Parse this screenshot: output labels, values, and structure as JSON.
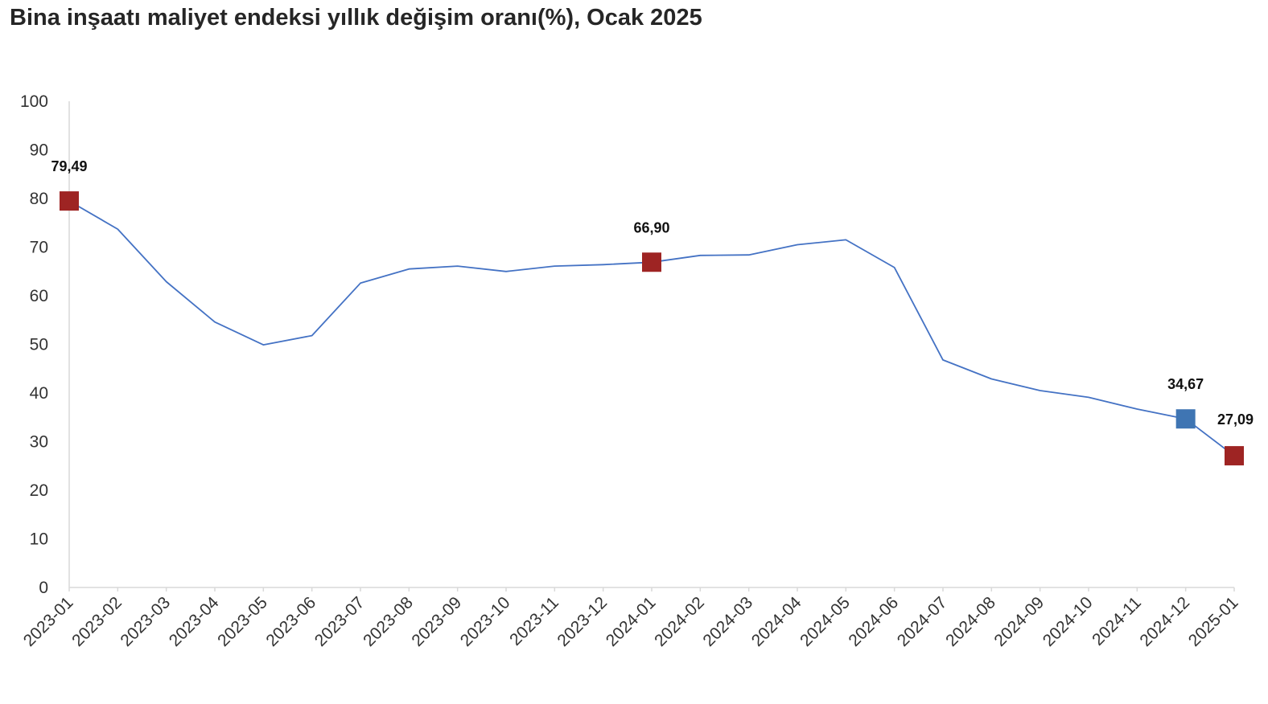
{
  "chart_data": {
    "type": "line",
    "title": "Bina inşaatı maliyet endeksi yıllık değişim oranı(%), Ocak 2025",
    "xlabel": "",
    "ylabel": "",
    "ylim": [
      0,
      100
    ],
    "yticks": [
      "0",
      "10",
      "20",
      "30",
      "40",
      "50",
      "60",
      "70",
      "80",
      "90",
      "100"
    ],
    "grid": false,
    "legend": "none",
    "categories": [
      "2023-01",
      "2023-02",
      "2023-03",
      "2023-04",
      "2023-05",
      "2023-06",
      "2023-07",
      "2023-08",
      "2023-09",
      "2023-10",
      "2023-11",
      "2023-12",
      "2024-01",
      "2024-02",
      "2024-03",
      "2024-04",
      "2024-05",
      "2024-06",
      "2024-07",
      "2024-08",
      "2024-09",
      "2024-10",
      "2024-11",
      "2024-12",
      "2025-01"
    ],
    "series": [
      {
        "color": "#4472c4",
        "values": [
          79.49,
          73.7,
          62.9,
          54.6,
          49.9,
          51.8,
          62.6,
          65.5,
          66.1,
          65.0,
          66.1,
          66.4,
          66.9,
          68.3,
          68.4,
          70.5,
          71.5,
          65.8,
          46.8,
          42.9,
          40.5,
          39.1,
          36.7,
          34.67,
          27.09
        ]
      }
    ],
    "markers": [
      {
        "category": "2023-01",
        "value": 79.49,
        "label": "79,49",
        "color": "#9e2423"
      },
      {
        "category": "2024-01",
        "value": 66.9,
        "label": "66,90",
        "color": "#9e2423"
      },
      {
        "category": "2024-12",
        "value": 34.67,
        "label": "34,67",
        "color": "#3f75b3"
      },
      {
        "category": "2025-01",
        "value": 27.09,
        "label": "27,09",
        "color": "#9e2423"
      }
    ],
    "axis_color": "#d9d9d9"
  }
}
